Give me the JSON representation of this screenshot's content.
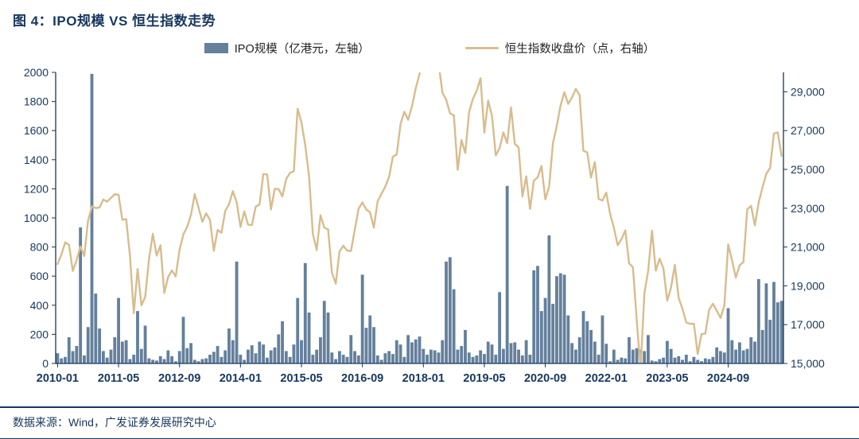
{
  "header": {
    "title": "图 4：IPO规模 VS 恒生指数走势"
  },
  "legend": [
    {
      "label": "IPO规模（亿港元，左轴）",
      "type": "bar",
      "color": "#64809c"
    },
    {
      "label": "恒生指数收盘价（点，右轴）",
      "type": "line",
      "color": "#d8bc8c"
    }
  ],
  "footer": {
    "source": "数据来源：Wind，广发证券发展研究中心"
  },
  "colors": {
    "navy_text": "#17375e",
    "bar": "#64809c",
    "line": "#d8bc8c"
  },
  "chart_data": {
    "type": "bar+line",
    "title": "图 4：IPO规模 VS 恒生指数走势",
    "start_month": "2010-01",
    "frequency": "monthly",
    "grid": "off",
    "legend_position": "top",
    "left_axis": {
      "label": "IPO规模（亿港元）",
      "min": 0,
      "max": 2000,
      "step": 200,
      "ticks": [
        0,
        200,
        400,
        600,
        800,
        1000,
        1200,
        1400,
        1600,
        1800,
        2000
      ]
    },
    "right_axis": {
      "label": "恒生指数收盘价（点）",
      "min": 15000,
      "max": 30000,
      "step": 2000,
      "tick_labels": [
        "15,000",
        "17,000",
        "19,000",
        "21,000",
        "23,000",
        "25,000",
        "27,000",
        "29,000"
      ]
    },
    "x_ticks": [
      {
        "index": 0,
        "label": "2010-01"
      },
      {
        "index": 16,
        "label": "2011-05"
      },
      {
        "index": 32,
        "label": "2012-09"
      },
      {
        "index": 48,
        "label": "2014-01"
      },
      {
        "index": 64,
        "label": "2015-05"
      },
      {
        "index": 80,
        "label": "2016-09"
      },
      {
        "index": 96,
        "label": "2018-01"
      },
      {
        "index": 112,
        "label": "2019-05"
      },
      {
        "index": 128,
        "label": "2020-09"
      },
      {
        "index": 144,
        "label": "2022-01"
      },
      {
        "index": 160,
        "label": "2023-05"
      },
      {
        "index": 176,
        "label": "2024-09"
      }
    ],
    "series": [
      {
        "name": "IPO规模（亿港元，左轴）",
        "type": "bar",
        "axis": "left",
        "color": "#64809c",
        "values": [
          70,
          35,
          45,
          180,
          85,
          120,
          935,
          55,
          250,
          1990,
          480,
          240,
          85,
          40,
          95,
          180,
          450,
          150,
          160,
          30,
          60,
          360,
          100,
          260,
          35,
          25,
          20,
          50,
          30,
          90,
          50,
          15,
          85,
          320,
          105,
          140,
          25,
          15,
          30,
          35,
          60,
          80,
          120,
          45,
          90,
          240,
          160,
          700,
          60,
          25,
          95,
          125,
          70,
          150,
          130,
          40,
          90,
          110,
          200,
          290,
          85,
          45,
          130,
          450,
          160,
          690,
          350,
          60,
          95,
          180,
          430,
          350,
          75,
          30,
          85,
          60,
          45,
          195,
          85,
          55,
          610,
          245,
          330,
          250,
          55,
          25,
          70,
          85,
          65,
          160,
          130,
          45,
          195,
          145,
          165,
          185,
          100,
          60,
          95,
          90,
          75,
          160,
          700,
          730,
          510,
          95,
          120,
          230,
          75,
          45,
          55,
          90,
          65,
          150,
          130,
          60,
          490,
          100,
          1220,
          140,
          145,
          95,
          55,
          160,
          60,
          640,
          670,
          360,
          450,
          880,
          410,
          600,
          620,
          610,
          330,
          140,
          95,
          180,
          360,
          290,
          230,
          150,
          60,
          330,
          135,
          15,
          95,
          25,
          40,
          35,
          180,
          95,
          105,
          95,
          85,
          195,
          20,
          15,
          30,
          40,
          155,
          100,
          40,
          50,
          25,
          60,
          15,
          45,
          25,
          15,
          35,
          30,
          45,
          110,
          85,
          75,
          380,
          160,
          95,
          145,
          90,
          100,
          180,
          150,
          580,
          230,
          550,
          300,
          560,
          420,
          430
        ]
      },
      {
        "name": "恒生指数收盘价（点，右轴）",
        "type": "line",
        "axis": "right",
        "color": "#d8bc8c",
        "values": [
          20122,
          20609,
          21239,
          21109,
          19765,
          20329,
          21030,
          20537,
          22358,
          23096,
          23007,
          23035,
          23447,
          23338,
          23528,
          23721,
          23684,
          22398,
          22440,
          20535,
          17592,
          19865,
          17989,
          18434,
          20390,
          21680,
          20556,
          21094,
          18629,
          19441,
          19796,
          19483,
          20840,
          21641,
          22030,
          22657,
          23729,
          23020,
          22300,
          22737,
          22392,
          20803,
          21884,
          21731,
          22860,
          23206,
          23881,
          23306,
          22035,
          22837,
          22151,
          22134,
          23082,
          23191,
          24757,
          24742,
          22933,
          23998,
          23987,
          23605,
          24507,
          24823,
          24901,
          28133,
          27424,
          26250,
          24636,
          21671,
          20846,
          22640,
          21996,
          21914,
          19683,
          19112,
          20777,
          21067,
          20815,
          20794,
          21891,
          22977,
          23297,
          22935,
          22790,
          22001,
          23361,
          23741,
          24112,
          24615,
          25661,
          25765,
          27324,
          27970,
          27554,
          28246,
          29177,
          29919,
          32887,
          30845,
          30093,
          30808,
          30469,
          28955,
          28583,
          27889,
          27789,
          24980,
          26507,
          25846,
          27942,
          28633,
          29051,
          29699,
          26901,
          28543,
          27778,
          25725,
          26092,
          26907,
          26346,
          28190,
          26313,
          26130,
          23603,
          24644,
          22961,
          24427,
          24595,
          25177,
          23459,
          24107,
          26341,
          27231,
          28284,
          28980,
          28378,
          28706,
          29152,
          28828,
          25961,
          25879,
          24576,
          25377,
          23476,
          23398,
          23802,
          22713,
          21997,
          21089,
          21415,
          21860,
          20157,
          19954,
          17223,
          14687,
          18597,
          19781,
          21842,
          19786,
          20400,
          19895,
          18234,
          18916,
          20079,
          18382,
          17810,
          17112,
          17043,
          17047,
          15485,
          16511,
          16541,
          17763,
          18080,
          17719,
          17345,
          17989,
          21134,
          20317,
          19424,
          20060,
          20225,
          22941,
          23120,
          22119,
          23290,
          24072,
          24773,
          25078,
          26855,
          26906,
          25700
        ]
      }
    ]
  }
}
